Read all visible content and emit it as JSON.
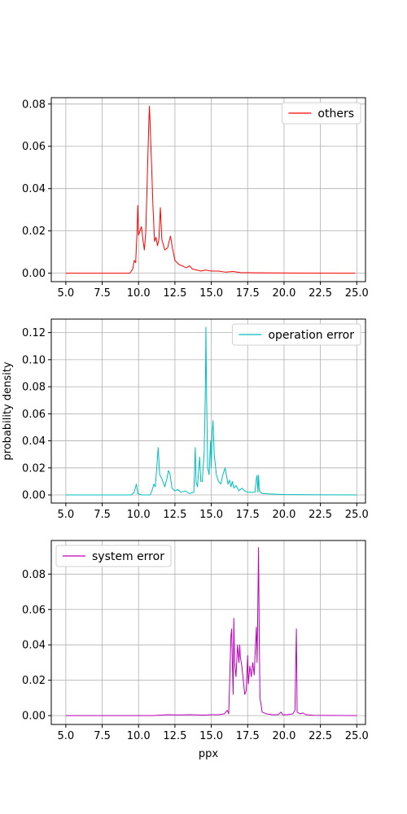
{
  "figure": {
    "xlabel": "ppx",
    "ylabel": "probability density"
  },
  "chart_data": [
    {
      "type": "line",
      "legend_position": "upper-right",
      "grid": true,
      "xlim": [
        4.0,
        25.6
      ],
      "ylim": [
        -0.004,
        0.083
      ],
      "xticks": [
        5.0,
        7.5,
        10.0,
        12.5,
        15.0,
        17.5,
        20.0,
        22.5,
        25.0
      ],
      "xtick_labels": [
        "5.0",
        "7.5",
        "10.0",
        "12.5",
        "15.0",
        "17.5",
        "20.0",
        "22.5",
        "25.0"
      ],
      "yticks": [
        0.0,
        0.02,
        0.04,
        0.06,
        0.08
      ],
      "ytick_labels": [
        "0.00",
        "0.02",
        "0.04",
        "0.06",
        "0.08"
      ],
      "series": [
        {
          "name": "others",
          "color": "#ff0000",
          "points": [
            [
              5.0,
              0
            ],
            [
              9.4,
              0
            ],
            [
              9.6,
              0.002
            ],
            [
              9.7,
              0.006
            ],
            [
              9.8,
              0.005
            ],
            [
              9.9,
              0.02
            ],
            [
              9.95,
              0.032
            ],
            [
              10.0,
              0.018
            ],
            [
              10.1,
              0.02
            ],
            [
              10.2,
              0.022
            ],
            [
              10.3,
              0.016
            ],
            [
              10.4,
              0.011
            ],
            [
              10.5,
              0.02
            ],
            [
              10.6,
              0.045
            ],
            [
              10.7,
              0.07
            ],
            [
              10.75,
              0.079
            ],
            [
              10.85,
              0.06
            ],
            [
              11.0,
              0.03
            ],
            [
              11.1,
              0.015
            ],
            [
              11.2,
              0.017
            ],
            [
              11.3,
              0.013
            ],
            [
              11.4,
              0.016
            ],
            [
              11.5,
              0.031
            ],
            [
              11.6,
              0.016
            ],
            [
              11.8,
              0.011
            ],
            [
              12.0,
              0.012
            ],
            [
              12.1,
              0.015
            ],
            [
              12.2,
              0.0175
            ],
            [
              12.3,
              0.013
            ],
            [
              12.5,
              0.006
            ],
            [
              12.8,
              0.004
            ],
            [
              13.0,
              0.0035
            ],
            [
              13.3,
              0.0025
            ],
            [
              13.5,
              0.0035
            ],
            [
              13.7,
              0.002
            ],
            [
              14.0,
              0.0015
            ],
            [
              14.3,
              0.001
            ],
            [
              14.6,
              0.0015
            ],
            [
              15.0,
              0.001
            ],
            [
              15.5,
              0.001
            ],
            [
              16.0,
              0.0005
            ],
            [
              16.5,
              0.0008
            ],
            [
              17.0,
              0.0003
            ],
            [
              18.0,
              0.0002
            ],
            [
              20.0,
              0.0001
            ],
            [
              24.9,
              0
            ]
          ]
        }
      ]
    },
    {
      "type": "line",
      "legend_position": "upper-right",
      "grid": true,
      "xlim": [
        4.0,
        25.6
      ],
      "ylim": [
        -0.006,
        0.13
      ],
      "xticks": [
        5.0,
        7.5,
        10.0,
        12.5,
        15.0,
        17.5,
        20.0,
        22.5,
        25.0
      ],
      "xtick_labels": [
        "5.0",
        "7.5",
        "10.0",
        "12.5",
        "15.0",
        "17.5",
        "20.0",
        "22.5",
        "25.0"
      ],
      "yticks": [
        0.0,
        0.02,
        0.04,
        0.06,
        0.08,
        0.1,
        0.12
      ],
      "ytick_labels": [
        "0.00",
        "0.02",
        "0.04",
        "0.06",
        "0.08",
        "0.10",
        "0.12"
      ],
      "series": [
        {
          "name": "operation error",
          "color": "#00bfbf",
          "points": [
            [
              5.0,
              0
            ],
            [
              9.5,
              0
            ],
            [
              9.7,
              0.002
            ],
            [
              9.85,
              0.008
            ],
            [
              9.95,
              0.001
            ],
            [
              10.2,
              0
            ],
            [
              10.8,
              0
            ],
            [
              10.95,
              0.004
            ],
            [
              11.05,
              0.008
            ],
            [
              11.15,
              0.006
            ],
            [
              11.25,
              0.02
            ],
            [
              11.35,
              0.035
            ],
            [
              11.45,
              0.015
            ],
            [
              11.6,
              0.012
            ],
            [
              11.8,
              0.006
            ],
            [
              11.95,
              0.012
            ],
            [
              12.05,
              0.018
            ],
            [
              12.15,
              0.016
            ],
            [
              12.3,
              0.005
            ],
            [
              12.5,
              0.003
            ],
            [
              12.7,
              0.004
            ],
            [
              12.9,
              0.002
            ],
            [
              13.2,
              0.003
            ],
            [
              13.5,
              0.001
            ],
            [
              13.8,
              0.002
            ],
            [
              13.9,
              0.035
            ],
            [
              13.95,
              0.01
            ],
            [
              14.05,
              0.006
            ],
            [
              14.2,
              0.028
            ],
            [
              14.28,
              0.01
            ],
            [
              14.38,
              0.01
            ],
            [
              14.5,
              0.03
            ],
            [
              14.55,
              0.05
            ],
            [
              14.6,
              0.085
            ],
            [
              14.63,
              0.124
            ],
            [
              14.68,
              0.07
            ],
            [
              14.75,
              0.02
            ],
            [
              14.85,
              0.015
            ],
            [
              14.95,
              0.04
            ],
            [
              15.0,
              0.02
            ],
            [
              15.05,
              0.045
            ],
            [
              15.12,
              0.055
            ],
            [
              15.2,
              0.03
            ],
            [
              15.35,
              0.015
            ],
            [
              15.5,
              0.01
            ],
            [
              15.65,
              0.008
            ],
            [
              15.8,
              0.015
            ],
            [
              15.95,
              0.02
            ],
            [
              16.05,
              0.014
            ],
            [
              16.15,
              0.008
            ],
            [
              16.25,
              0.011
            ],
            [
              16.35,
              0.006
            ],
            [
              16.45,
              0.01
            ],
            [
              16.55,
              0.005
            ],
            [
              16.7,
              0.007
            ],
            [
              16.9,
              0.003
            ],
            [
              17.1,
              0.005
            ],
            [
              17.3,
              0.003
            ],
            [
              17.5,
              0.002
            ],
            [
              18.0,
              0.002
            ],
            [
              18.1,
              0.012
            ],
            [
              18.15,
              0.0145
            ],
            [
              18.2,
              0.002
            ],
            [
              18.25,
              0.0145
            ],
            [
              18.3,
              0.003
            ],
            [
              18.5,
              0.001
            ],
            [
              19.0,
              0.0008
            ],
            [
              19.5,
              0.0005
            ],
            [
              20.0,
              0.0003
            ],
            [
              25.0,
              0
            ]
          ]
        }
      ]
    },
    {
      "type": "line",
      "legend_position": "upper-left",
      "grid": true,
      "xlim": [
        4.0,
        25.6
      ],
      "ylim": [
        -0.005,
        0.099
      ],
      "xticks": [
        5.0,
        7.5,
        10.0,
        12.5,
        15.0,
        17.5,
        20.0,
        22.5,
        25.0
      ],
      "xtick_labels": [
        "5.0",
        "7.5",
        "10.0",
        "12.5",
        "15.0",
        "17.5",
        "20.0",
        "22.5",
        "25.0"
      ],
      "yticks": [
        0.0,
        0.02,
        0.04,
        0.06,
        0.08
      ],
      "ytick_labels": [
        "0.00",
        "0.02",
        "0.04",
        "0.06",
        "0.08"
      ],
      "series": [
        {
          "name": "system error",
          "color": "#bf00bf",
          "points": [
            [
              5.0,
              0
            ],
            [
              11.0,
              0
            ],
            [
              11.5,
              0.0003
            ],
            [
              12.0,
              0.0005
            ],
            [
              12.5,
              0.0004
            ],
            [
              13.0,
              0.0004
            ],
            [
              13.5,
              0.0005
            ],
            [
              14.0,
              0.0004
            ],
            [
              14.5,
              0.0003
            ],
            [
              15.0,
              0.0005
            ],
            [
              15.5,
              0.0005
            ],
            [
              15.9,
              0.001
            ],
            [
              16.1,
              0.003
            ],
            [
              16.2,
              0.001
            ],
            [
              16.35,
              0.045
            ],
            [
              16.4,
              0.049
            ],
            [
              16.45,
              0.03
            ],
            [
              16.5,
              0.012
            ],
            [
              16.55,
              0.055
            ],
            [
              16.6,
              0.03
            ],
            [
              16.7,
              0.022
            ],
            [
              16.8,
              0.04
            ],
            [
              16.9,
              0.03
            ],
            [
              16.95,
              0.04
            ],
            [
              17.0,
              0.033
            ],
            [
              17.1,
              0.028
            ],
            [
              17.2,
              0.02
            ],
            [
              17.3,
              0.012
            ],
            [
              17.4,
              0.014
            ],
            [
              17.5,
              0.034
            ],
            [
              17.55,
              0.018
            ],
            [
              17.65,
              0.028
            ],
            [
              17.75,
              0.022
            ],
            [
              17.85,
              0.03
            ],
            [
              17.95,
              0.023
            ],
            [
              18.0,
              0.033
            ],
            [
              18.1,
              0.05
            ],
            [
              18.15,
              0.03
            ],
            [
              18.25,
              0.095
            ],
            [
              18.3,
              0.04
            ],
            [
              18.35,
              0.01
            ],
            [
              18.5,
              0.002
            ],
            [
              18.8,
              0.001
            ],
            [
              19.2,
              0.0005
            ],
            [
              19.6,
              0.0005
            ],
            [
              19.8,
              0.002
            ],
            [
              19.9,
              0.0005
            ],
            [
              20.2,
              0.0005
            ],
            [
              20.6,
              0.001
            ],
            [
              20.75,
              0.003
            ],
            [
              20.85,
              0.049
            ],
            [
              20.9,
              0.002
            ],
            [
              21.1,
              0.001
            ],
            [
              21.3,
              0.0015
            ],
            [
              21.5,
              0.0005
            ],
            [
              22.0,
              0.0002
            ],
            [
              25.0,
              0
            ]
          ]
        }
      ]
    }
  ]
}
